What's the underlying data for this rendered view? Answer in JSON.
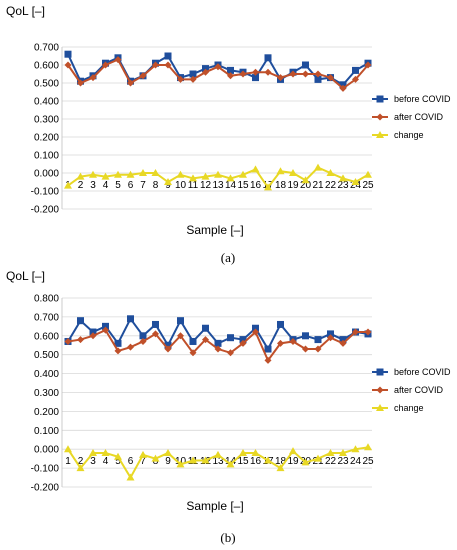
{
  "chart_data": [
    {
      "type": "line",
      "panel_label": "(a)",
      "ylabel": "QoL [–]",
      "xlabel": "Sample [–]",
      "ylim": [
        -0.2,
        0.7
      ],
      "y_ticks": [
        "0.700",
        "0.600",
        "0.500",
        "0.400",
        "0.300",
        "0.200",
        "0.100",
        "0.000",
        "-0.100",
        "-0.200"
      ],
      "categories": [
        "1",
        "2",
        "3",
        "4",
        "5",
        "6",
        "7",
        "8",
        "9",
        "10",
        "11",
        "12",
        "13",
        "14",
        "15",
        "16",
        "17",
        "18",
        "19",
        "20",
        "21",
        "22",
        "23",
        "24",
        "25"
      ],
      "legend_position": "right",
      "series": [
        {
          "name": "before COVID",
          "color": "#1f4e9c",
          "marker": "square",
          "values": [
            0.66,
            0.51,
            0.54,
            0.61,
            0.64,
            0.51,
            0.54,
            0.61,
            0.65,
            0.53,
            0.55,
            0.58,
            0.6,
            0.57,
            0.56,
            0.53,
            0.64,
            0.52,
            0.56,
            0.6,
            0.52,
            0.53,
            0.49,
            0.57,
            0.61
          ]
        },
        {
          "name": "after COVID",
          "color": "#c0502a",
          "marker": "diamond",
          "values": [
            0.6,
            0.5,
            0.53,
            0.6,
            0.63,
            0.5,
            0.54,
            0.6,
            0.6,
            0.52,
            0.52,
            0.56,
            0.59,
            0.54,
            0.55,
            0.56,
            0.56,
            0.53,
            0.55,
            0.55,
            0.55,
            0.53,
            0.47,
            0.52,
            0.6
          ]
        },
        {
          "name": "change",
          "color": "#e8d825",
          "marker": "triangle",
          "values": [
            -0.07,
            -0.02,
            -0.01,
            -0.02,
            -0.01,
            -0.01,
            0.0,
            0.0,
            -0.05,
            -0.01,
            -0.03,
            -0.02,
            -0.01,
            -0.03,
            -0.01,
            0.02,
            -0.08,
            0.01,
            0.0,
            -0.04,
            0.03,
            0.0,
            -0.03,
            -0.05,
            -0.01
          ]
        }
      ]
    },
    {
      "type": "line",
      "panel_label": "(b)",
      "ylabel": "QoL [–]",
      "xlabel": "Sample [–]",
      "ylim": [
        -0.2,
        0.8
      ],
      "y_ticks": [
        "0.800",
        "0.700",
        "0.600",
        "0.500",
        "0.400",
        "0.300",
        "0.200",
        "0.100",
        "0.000",
        "-0.100",
        "-0.200"
      ],
      "categories": [
        "1",
        "2",
        "3",
        "4",
        "5",
        "6",
        "7",
        "8",
        "9",
        "10",
        "11",
        "12",
        "13",
        "14",
        "15",
        "16",
        "17",
        "18",
        "19",
        "20",
        "21",
        "22",
        "23",
        "24",
        "25"
      ],
      "legend_position": "right",
      "series": [
        {
          "name": "before COVID",
          "color": "#1f4e9c",
          "marker": "square",
          "values": [
            0.57,
            0.68,
            0.62,
            0.65,
            0.56,
            0.69,
            0.6,
            0.66,
            0.55,
            0.68,
            0.57,
            0.64,
            0.56,
            0.59,
            0.58,
            0.64,
            0.53,
            0.66,
            0.58,
            0.6,
            0.58,
            0.61,
            0.58,
            0.62,
            0.61
          ]
        },
        {
          "name": "after COVID",
          "color": "#c0502a",
          "marker": "diamond",
          "values": [
            0.57,
            0.58,
            0.6,
            0.63,
            0.52,
            0.54,
            0.57,
            0.61,
            0.53,
            0.6,
            0.51,
            0.58,
            0.53,
            0.51,
            0.56,
            0.62,
            0.47,
            0.56,
            0.57,
            0.53,
            0.53,
            0.59,
            0.56,
            0.62,
            0.62
          ]
        },
        {
          "name": "change",
          "color": "#e8d825",
          "marker": "triangle",
          "values": [
            0.0,
            -0.1,
            -0.02,
            -0.02,
            -0.04,
            -0.15,
            -0.03,
            -0.05,
            -0.02,
            -0.08,
            -0.06,
            -0.06,
            -0.03,
            -0.08,
            -0.02,
            -0.02,
            -0.06,
            -0.1,
            -0.01,
            -0.07,
            -0.05,
            -0.02,
            -0.02,
            0.0,
            0.01
          ]
        }
      ]
    }
  ]
}
